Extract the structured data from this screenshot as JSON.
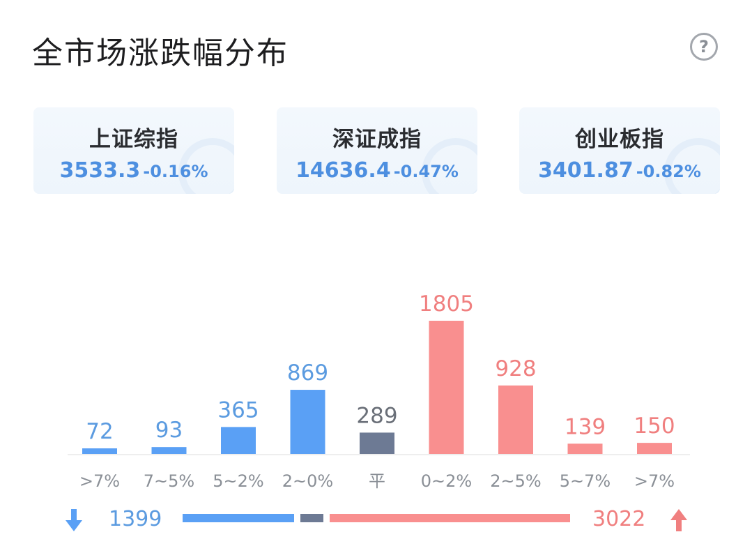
{
  "title": "全市场涨跌幅分布",
  "help_label": "?",
  "indices": [
    {
      "name": "上证综指",
      "value": "3533.3",
      "change": "-0.16%"
    },
    {
      "name": "深证成指",
      "value": "14636.4",
      "change": "-0.47%"
    },
    {
      "name": "创业板指",
      "value": "3401.87",
      "change": "-0.82%"
    }
  ],
  "colors": {
    "down": "#5aa0f5",
    "flat": "#6d7a94",
    "up": "#f98f8f",
    "down_text": "#5b9be0",
    "flat_text": "#6a6f78",
    "up_text": "#f07f7f",
    "axis": "#eeeeee",
    "tick": "#8a8f96"
  },
  "chart_data": {
    "type": "bar",
    "categories": [
      ">7%",
      "7~5%",
      "5~2%",
      "2~0%",
      "平",
      "0~2%",
      "2~5%",
      "5~7%",
      ">7%"
    ],
    "values": [
      72,
      93,
      365,
      869,
      289,
      1805,
      928,
      139,
      150
    ],
    "groups": [
      "down",
      "down",
      "down",
      "down",
      "flat",
      "up",
      "up",
      "up",
      "up"
    ],
    "title": "",
    "xlabel": "",
    "ylabel": "",
    "ylim": [
      0,
      1805
    ],
    "grid": false,
    "legend": "none"
  },
  "summary": {
    "down_count": "1399",
    "flat_count": 289,
    "up_count": "3022",
    "down_icon": "arrow-down-icon",
    "up_icon": "arrow-up-icon"
  }
}
